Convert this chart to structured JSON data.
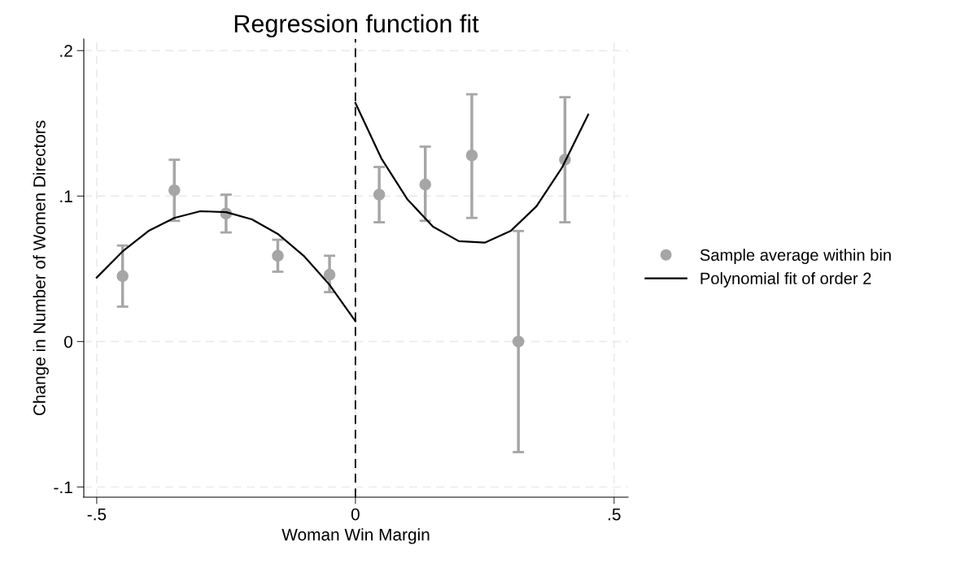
{
  "chart_data": {
    "type": "scatter",
    "title": "Regression function fit",
    "xlabel": "Woman Win Margin",
    "ylabel": "Change in Number of Women Directors",
    "xlim": [
      -0.525,
      0.527
    ],
    "ylim": [
      -0.107,
      0.208
    ],
    "xticks": [
      {
        "value": -0.5,
        "label": "-.5"
      },
      0,
      {
        "value": 0.5,
        "label": ".5"
      }
    ],
    "yticks": [
      {
        "value": -0.1,
        "label": "-.1"
      },
      0,
      {
        "value": 0.1,
        "label": ".1"
      },
      {
        "value": 0.2,
        "label": ".2"
      }
    ],
    "grid": true,
    "legend": "right",
    "marker": "circle",
    "ref_lines": [
      {
        "axis": "x",
        "value": 0,
        "color": "#000000",
        "line_style": "dashed"
      }
    ],
    "series": [
      {
        "name": "Sample average within bin",
        "color": "#a6a6a6",
        "x": [
          -0.45,
          -0.35,
          -0.25,
          -0.15,
          -0.05,
          0.046,
          0.135,
          0.225,
          0.315,
          0.405
        ],
        "values": [
          0.045,
          0.104,
          0.088,
          0.059,
          0.046,
          0.101,
          0.108,
          0.128,
          0.0,
          0.125
        ],
        "errors": [
          [
            0.024,
            0.066
          ],
          [
            0.083,
            0.125
          ],
          [
            0.075,
            0.101
          ],
          [
            0.048,
            0.07
          ],
          [
            0.034,
            0.059
          ],
          [
            0.082,
            0.12
          ],
          [
            0.083,
            0.134
          ],
          [
            0.085,
            0.17
          ],
          [
            -0.076,
            0.076
          ],
          [
            0.082,
            0.168
          ]
        ]
      },
      {
        "name": "Polynomial fit of order 2",
        "type": "line",
        "color": "#000000",
        "marker": "none",
        "x": [
          -0.5,
          -0.45,
          -0.4,
          -0.35,
          -0.3,
          -0.25,
          -0.2,
          -0.15,
          -0.1,
          -0.05,
          0,
          null,
          0,
          0.05,
          0.1,
          0.15,
          0.2,
          0.25,
          0.3,
          0.35,
          0.4,
          0.45
        ],
        "values": [
          0.044,
          0.062,
          0.076,
          0.085,
          0.0896,
          0.089,
          0.084,
          0.074,
          0.059,
          0.039,
          0.014,
          null,
          0.164,
          0.126,
          0.098,
          0.079,
          0.069,
          0.068,
          0.076,
          0.093,
          0.12,
          0.156
        ]
      }
    ]
  }
}
